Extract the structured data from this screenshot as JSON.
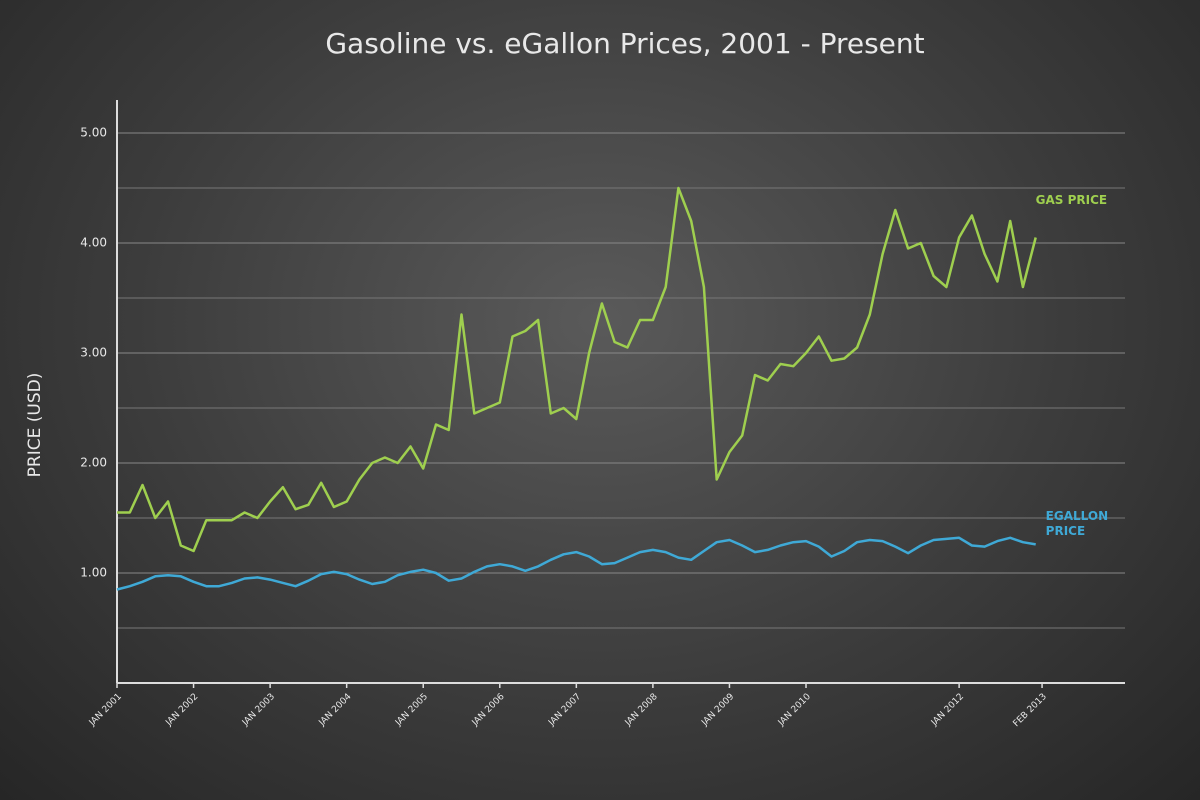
{
  "chart_data": {
    "type": "line",
    "title": "Gasoline vs. eGallon Prices, 2001 - Present",
    "y_label": "PRICE (USD)",
    "x": [
      "2001-01",
      "2001-03",
      "2001-05",
      "2001-07",
      "2001-09",
      "2001-11",
      "2002-01",
      "2002-03",
      "2002-05",
      "2002-07",
      "2002-09",
      "2002-11",
      "2003-01",
      "2003-03",
      "2003-05",
      "2003-07",
      "2003-09",
      "2003-11",
      "2004-01",
      "2004-03",
      "2004-05",
      "2004-07",
      "2004-09",
      "2004-11",
      "2005-01",
      "2005-03",
      "2005-05",
      "2005-07",
      "2005-09",
      "2005-11",
      "2006-01",
      "2006-03",
      "2006-05",
      "2006-07",
      "2006-09",
      "2006-11",
      "2007-01",
      "2007-03",
      "2007-05",
      "2007-07",
      "2007-09",
      "2007-11",
      "2008-01",
      "2008-03",
      "2008-05",
      "2008-07",
      "2008-09",
      "2008-11",
      "2009-01",
      "2009-03",
      "2009-05",
      "2009-07",
      "2009-09",
      "2009-11",
      "2010-01",
      "2010-03",
      "2010-05",
      "2010-07",
      "2010-09",
      "2010-11",
      "2011-01",
      "2011-03",
      "2011-05",
      "2011-07",
      "2011-09",
      "2011-11",
      "2012-01",
      "2012-03",
      "2012-05",
      "2012-07",
      "2012-09",
      "2012-11",
      "2013-01"
    ],
    "series": [
      {
        "name": "GAS PRICE",
        "color": "#9fcf4f",
        "values": [
          1.55,
          1.55,
          1.8,
          1.5,
          1.65,
          1.25,
          1.2,
          1.48,
          1.48,
          1.48,
          1.55,
          1.5,
          1.65,
          1.78,
          1.58,
          1.62,
          1.82,
          1.6,
          1.65,
          1.85,
          2.0,
          2.05,
          2.0,
          2.15,
          1.95,
          2.35,
          2.3,
          3.35,
          2.45,
          2.5,
          2.55,
          3.15,
          3.2,
          3.3,
          2.45,
          2.5,
          2.4,
          3.0,
          3.45,
          3.1,
          3.05,
          3.3,
          3.3,
          3.6,
          4.5,
          4.2,
          3.6,
          1.85,
          2.1,
          2.25,
          2.8,
          2.75,
          2.9,
          2.88,
          3.0,
          3.15,
          2.93,
          2.95,
          3.05,
          3.35,
          3.9,
          4.3,
          3.95,
          4.0,
          3.7,
          3.6,
          4.05,
          4.25,
          3.9,
          3.65,
          4.2,
          3.6,
          4.05
        ]
      },
      {
        "name": "EGALLON PRICE",
        "color": "#3fa9d6",
        "values": [
          0.85,
          0.88,
          0.92,
          0.97,
          0.98,
          0.97,
          0.92,
          0.88,
          0.88,
          0.91,
          0.95,
          0.96,
          0.94,
          0.91,
          0.88,
          0.93,
          0.99,
          1.01,
          0.99,
          0.94,
          0.9,
          0.92,
          0.98,
          1.01,
          1.03,
          1.0,
          0.93,
          0.95,
          1.01,
          1.06,
          1.08,
          1.06,
          1.02,
          1.06,
          1.12,
          1.17,
          1.19,
          1.15,
          1.08,
          1.09,
          1.14,
          1.19,
          1.21,
          1.19,
          1.14,
          1.12,
          1.2,
          1.28,
          1.3,
          1.25,
          1.19,
          1.21,
          1.25,
          1.28,
          1.29,
          1.24,
          1.15,
          1.2,
          1.28,
          1.3,
          1.29,
          1.24,
          1.18,
          1.25,
          1.3,
          1.31,
          1.32,
          1.25,
          1.24,
          1.29,
          1.32,
          1.28,
          1.26
        ]
      }
    ],
    "xlim": [
      "2001-01",
      "2014-03"
    ],
    "xticks": [
      {
        "value": "2001-01",
        "label": "JAN 2001"
      },
      {
        "value": "2002-01",
        "label": "JAN 2002"
      },
      {
        "value": "2003-01",
        "label": "JAN 2003"
      },
      {
        "value": "2004-01",
        "label": "JAN 2004"
      },
      {
        "value": "2005-01",
        "label": "JAN 2005"
      },
      {
        "value": "2006-01",
        "label": "JAN 2006"
      },
      {
        "value": "2007-01",
        "label": "JAN 2007"
      },
      {
        "value": "2008-01",
        "label": "JAN 2008"
      },
      {
        "value": "2009-01",
        "label": "JAN 2009"
      },
      {
        "value": "2010-01",
        "label": "JAN 2010"
      },
      {
        "value": "2012-01",
        "label": "JAN 2012"
      },
      {
        "value": "2013-02",
        "label": "FEB 2013"
      }
    ],
    "ylim": [
      0,
      5.3
    ],
    "yticks": [
      {
        "value": 1,
        "label": "1.00"
      },
      {
        "value": 2,
        "label": "2.00"
      },
      {
        "value": 3,
        "label": "3.00"
      },
      {
        "value": 4,
        "label": "4.00"
      },
      {
        "value": 5,
        "label": "5.00"
      }
    ],
    "minor_yticks": [
      0.5,
      1.5,
      2.5,
      3.5,
      4.5
    ],
    "grid": true
  }
}
